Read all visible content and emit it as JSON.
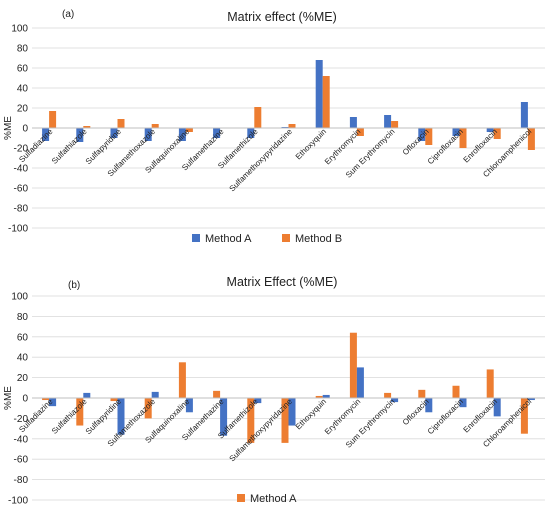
{
  "colors": {
    "method_a": "#4472C4",
    "method_b": "#ED7D31",
    "grid": "#D9D9D9"
  },
  "chart_data": [
    {
      "type": "bar",
      "panel_label": "(a)",
      "title": "Matrix effect (%ME)",
      "xlabel": "",
      "ylabel": "%ME",
      "ylim": [
        -100,
        100
      ],
      "yticks": [
        -100,
        -80,
        -60,
        -40,
        -20,
        0,
        20,
        40,
        60,
        80,
        100
      ],
      "grid": true,
      "legend": "bottom-center",
      "categories": [
        "Sulfadiazine",
        "Sulfathiazole",
        "Sulfapyridine",
        "Sulfamethoxazole",
        "Sulfaquinoxaline",
        "Sulfamethazine",
        "Sulfamethizole",
        "Sulfamethoxypyridazine",
        "Ethoxyquin",
        "Erythromycin",
        "Sum Erythromycin",
        "Ofloxacin",
        "Ciprofloxacin",
        "Enrofloxacin",
        "Chloroamphenicol"
      ],
      "series": [
        {
          "name": "Method A",
          "color": "#4472C4",
          "values": [
            -13,
            -14,
            -10,
            -13,
            -13,
            -10,
            -10,
            1,
            68,
            11,
            13,
            -13,
            -8,
            -4,
            26
          ]
        },
        {
          "name": "Method B",
          "color": "#ED7D31",
          "values": [
            17,
            2,
            9,
            4,
            -4,
            0,
            21,
            4,
            52,
            -8,
            7,
            -17,
            -20,
            -11,
            -22
          ]
        }
      ]
    },
    {
      "type": "bar",
      "panel_label": "(b)",
      "title": "Matrix Effect (%ME)",
      "xlabel": "",
      "ylabel": "%ME",
      "ylim": [
        -100,
        100
      ],
      "yticks": [
        -100,
        -80,
        -60,
        -40,
        -20,
        0,
        20,
        40,
        60,
        80,
        100
      ],
      "grid": true,
      "legend": "bottom-center",
      "categories": [
        "Sulfadiazine",
        "Sulfathiazole",
        "Sulfapyridine",
        "Sulfamethoxazole",
        "Sulfaquinoxaline",
        "Sulfamethazine",
        "Sulfamethizole",
        "Sulfamethoxypyridazine",
        "Ethoxyquin",
        "Erythromycin",
        "Sum Erythromycin",
        "Ofloxacin",
        "Ciprofloxacin",
        "Enrofloxacin",
        "Chloroamphenicol"
      ],
      "series": [
        {
          "name": "Method A",
          "color": "#ED7D31",
          "values": [
            -2,
            -27,
            -3,
            -20,
            35,
            7,
            -44,
            -44,
            2,
            64,
            5,
            8,
            12,
            28,
            -35
          ]
        },
        {
          "name": "",
          "color": "#4472C4",
          "values": [
            -8,
            5,
            -36,
            6,
            -14,
            -37,
            -5,
            -27,
            3,
            30,
            -4,
            -14,
            -9,
            -18,
            -2
          ]
        }
      ]
    }
  ]
}
